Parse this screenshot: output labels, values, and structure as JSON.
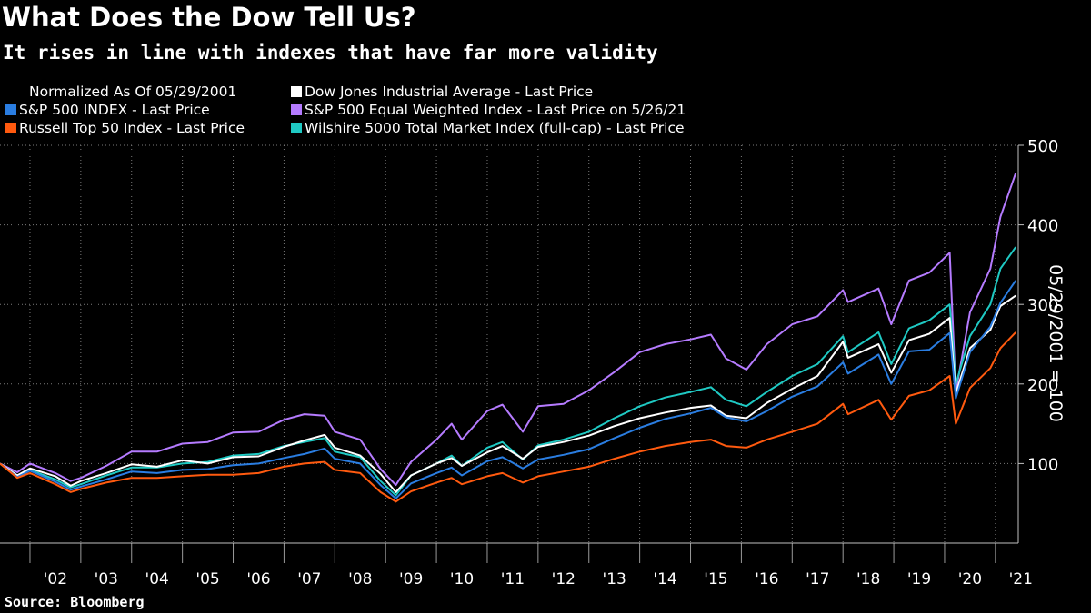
{
  "title": "What Does the Dow Tell Us?",
  "subtitle": "It rises in line with indexes that have far more validity",
  "source": "Source: Bloomberg",
  "legend": {
    "note": "Normalized As Of 05/29/2001",
    "items": [
      {
        "label": "Dow Jones Industrial Average - Last Price",
        "color": "#ffffff"
      },
      {
        "label": "S&P 500 INDEX - Last Price",
        "color": "#2a7de1"
      },
      {
        "label": "S&P 500 Equal Weighted Index - Last Price on 5/26/21",
        "color": "#b57bff"
      },
      {
        "label": "Russell Top 50 Index - Last Price",
        "color": "#ff5a0f"
      },
      {
        "label": "Wilshire 5000 Total Market Index (full-cap) - Last Price",
        "color": "#1fc9c3"
      }
    ]
  },
  "chart_data": {
    "type": "line",
    "ylabel": "05/29/2001 = 100",
    "ylim": [
      0,
      500
    ],
    "xlim": [
      2001.41,
      2021.45
    ],
    "yticks": [
      100,
      200,
      300,
      400,
      500
    ],
    "xtick_labels": [
      "'02",
      "'03",
      "'04",
      "'05",
      "'06",
      "'07",
      "'08",
      "'09",
      "'10",
      "'11",
      "'12",
      "'13",
      "'14",
      "'15",
      "'16",
      "'17",
      "'18",
      "'19",
      "'20",
      "'21"
    ],
    "x_years": [
      2001.41,
      2001.75,
      2002.0,
      2002.5,
      2002.8,
      2003.0,
      2003.5,
      2004.0,
      2004.5,
      2005.0,
      2005.5,
      2006.0,
      2006.5,
      2007.0,
      2007.4,
      2007.8,
      2008.0,
      2008.5,
      2008.9,
      2009.2,
      2009.5,
      2010.0,
      2010.3,
      2010.5,
      2011.0,
      2011.3,
      2011.7,
      2012.0,
      2012.5,
      2013.0,
      2013.5,
      2014.0,
      2014.5,
      2015.0,
      2015.4,
      2015.7,
      2016.1,
      2016.5,
      2017.0,
      2017.5,
      2018.0,
      2018.1,
      2018.7,
      2018.95,
      2019.3,
      2019.7,
      2020.1,
      2020.22,
      2020.5,
      2020.9,
      2021.1,
      2021.4
    ],
    "series": [
      {
        "name": "Dow Jones Industrial Average - Last Price",
        "color": "#ffffff",
        "values": [
          100,
          85,
          94,
          84,
          72,
          78,
          88,
          99,
          96,
          104,
          100,
          108,
          109,
          121,
          129,
          136,
          120,
          110,
          87,
          64,
          85,
          100,
          107,
          97,
          114,
          122,
          106,
          121,
          127,
          135,
          147,
          157,
          164,
          170,
          173,
          160,
          157,
          176,
          194,
          210,
          253,
          233,
          250,
          214,
          255,
          263,
          283,
          188,
          245,
          268,
          298,
          311
        ]
      },
      {
        "name": "S&P 500 INDEX - Last Price",
        "color": "#2a7de1",
        "values": [
          100,
          83,
          91,
          77,
          67,
          71,
          80,
          90,
          88,
          92,
          93,
          98,
          100,
          107,
          112,
          119,
          106,
          100,
          73,
          56,
          75,
          88,
          95,
          85,
          103,
          108,
          94,
          105,
          111,
          118,
          132,
          145,
          156,
          163,
          170,
          158,
          153,
          166,
          184,
          197,
          227,
          213,
          237,
          200,
          241,
          243,
          264,
          182,
          240,
          272,
          302,
          330
        ]
      },
      {
        "name": "S&P 500 Equal Weighted Index - Last Price on 5/26/21",
        "color": "#b57bff",
        "values": [
          100,
          89,
          100,
          88,
          78,
          82,
          97,
          115,
          115,
          125,
          127,
          139,
          140,
          155,
          162,
          160,
          140,
          130,
          93,
          73,
          102,
          130,
          150,
          130,
          166,
          174,
          140,
          172,
          175,
          192,
          215,
          240,
          250,
          256,
          262,
          232,
          218,
          250,
          275,
          285,
          318,
          303,
          320,
          275,
          330,
          340,
          365,
          190,
          290,
          345,
          410,
          465
        ]
      },
      {
        "name": "Russell Top 50 Index - Last Price",
        "color": "#ff5a0f",
        "values": [
          100,
          82,
          88,
          74,
          64,
          68,
          76,
          82,
          82,
          84,
          86,
          86,
          88,
          96,
          100,
          102,
          92,
          88,
          64,
          52,
          65,
          76,
          82,
          74,
          84,
          88,
          76,
          84,
          90,
          96,
          106,
          115,
          122,
          127,
          130,
          122,
          120,
          130,
          140,
          150,
          175,
          162,
          180,
          155,
          185,
          192,
          210,
          150,
          195,
          220,
          245,
          265
        ]
      },
      {
        "name": "Wilshire 5000 Total Market Index (full-cap) - Last Price",
        "color": "#1fc9c3",
        "values": [
          100,
          85,
          92,
          80,
          70,
          74,
          85,
          95,
          95,
          100,
          102,
          110,
          112,
          122,
          127,
          132,
          115,
          108,
          78,
          60,
          85,
          100,
          110,
          97,
          120,
          127,
          105,
          123,
          130,
          140,
          157,
          172,
          183,
          190,
          196,
          180,
          172,
          190,
          210,
          225,
          260,
          240,
          265,
          225,
          270,
          280,
          300,
          200,
          260,
          300,
          345,
          372
        ]
      }
    ]
  }
}
